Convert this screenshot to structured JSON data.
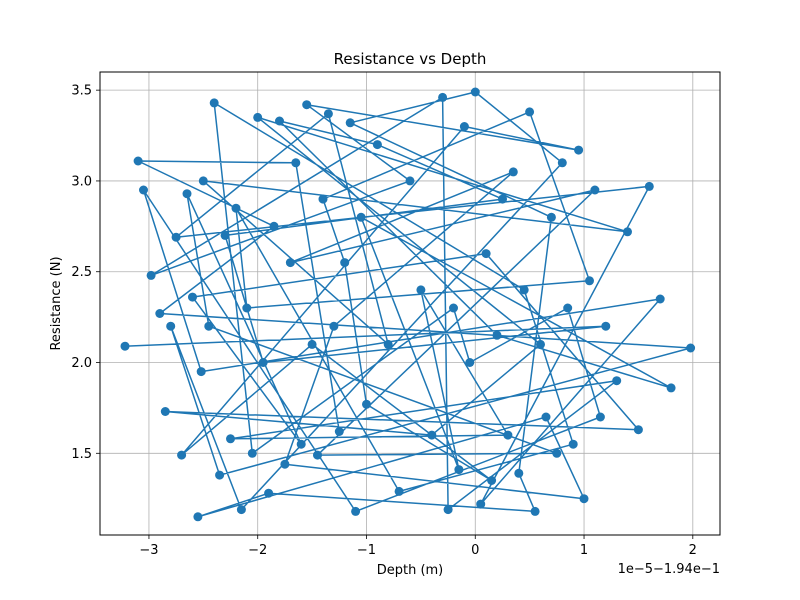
{
  "chart_data": {
    "type": "line",
    "title": "Resistance vs Depth",
    "xlabel": "Depth (m)",
    "ylabel": "Resistance (N)",
    "x_offset_label": "1e−5−1.94e−1",
    "xlim": [
      -3.45,
      2.25
    ],
    "ylim": [
      1.05,
      3.6
    ],
    "x_ticks": [
      -3,
      -2,
      -1,
      0,
      1,
      2
    ],
    "x_tick_labels": [
      "−3",
      "−2",
      "−1",
      "0",
      "1",
      "2"
    ],
    "y_ticks": [
      1.5,
      2.0,
      2.5,
      3.0,
      3.5
    ],
    "y_tick_labels": [
      "1.5",
      "2.0",
      "2.5",
      "3.0",
      "3.5"
    ],
    "grid": true,
    "marker": "circle",
    "line_color": "#1f77b4",
    "series": [
      {
        "x": [
          -3.22,
          -3.1,
          -3.05,
          -2.98,
          -2.9,
          -2.85,
          -2.8,
          -2.75,
          -2.7,
          -2.65,
          -2.6,
          -2.55,
          -2.52,
          -2.5,
          -2.45,
          -2.4,
          -2.35,
          -2.3,
          -2.25,
          -2.2,
          -2.15,
          -2.1,
          -2.05,
          -2.0,
          -1.95,
          -1.9,
          -1.85,
          -1.8,
          -1.75,
          -1.7,
          -1.65,
          -1.6,
          -1.55,
          -1.5,
          -1.45,
          -1.4,
          -1.35,
          -1.3,
          -1.25,
          -1.2,
          -1.15,
          -1.1,
          -1.05,
          -1.0,
          -0.9,
          -0.8,
          -0.7,
          -0.6,
          -0.5,
          -0.4,
          -0.3,
          -0.25,
          -0.2,
          -0.15,
          -0.1,
          -0.05,
          0.0,
          0.05,
          0.1,
          0.15,
          0.2,
          0.25,
          0.3,
          0.35,
          0.4,
          0.45,
          0.5,
          0.55,
          0.6,
          0.65,
          0.7,
          0.75,
          0.8,
          0.85,
          0.9,
          0.95,
          1.0,
          1.05,
          1.1,
          1.15,
          1.2,
          1.3,
          1.4,
          1.5,
          1.6,
          1.7,
          1.8,
          1.98
        ],
        "y": [
          2.09,
          3.11,
          2.95,
          2.48,
          2.27,
          1.73,
          2.2,
          2.69,
          1.49,
          2.93,
          2.36,
          1.15,
          1.95,
          3.0,
          2.2,
          3.43,
          1.38,
          2.7,
          1.58,
          2.85,
          1.19,
          2.3,
          1.5,
          3.35,
          2.0,
          1.28,
          2.75,
          3.33,
          1.44,
          2.55,
          3.1,
          1.55,
          3.42,
          2.1,
          1.49,
          2.9,
          3.37,
          2.2,
          1.62,
          2.55,
          3.32,
          1.18,
          2.8,
          1.77,
          3.2,
          2.1,
          1.29,
          3.0,
          2.4,
          1.6,
          3.46,
          1.19,
          2.3,
          1.41,
          3.3,
          2.0,
          3.49,
          1.22,
          2.6,
          1.35,
          2.15,
          2.9,
          1.6,
          3.05,
          1.39,
          2.4,
          3.38,
          1.18,
          2.1,
          1.7,
          2.8,
          1.5,
          3.1,
          2.3,
          1.55,
          3.17,
          1.25,
          2.45,
          2.95,
          1.7,
          2.2,
          1.9,
          2.72,
          1.63,
          2.97,
          2.35,
          1.86,
          2.08
        ]
      }
    ]
  }
}
